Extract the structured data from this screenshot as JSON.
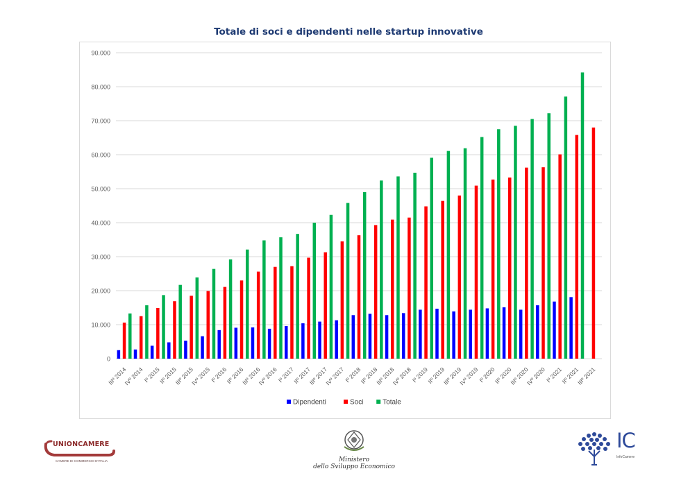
{
  "chart_data": {
    "type": "bar",
    "title": "Totale di soci e dipendenti nelle startup innovative",
    "categories": [
      "IIIº 2014",
      "IVº 2014",
      "Iº 2015",
      "IIº 2015",
      "IIIº 2015",
      "IVº 2015",
      "Iº 2016",
      "IIº 2016",
      "IIIº 2016",
      "IVº 2016",
      "Iº 2017",
      "IIº 2017",
      "IIIº 2017",
      "IVº 2017",
      "Iº 2018",
      "IIº 2018",
      "IIIº 2018",
      "IVº 2018",
      "Iº 2019",
      "IIº 2019",
      "IIIº 2019",
      "IVº 2019",
      "Iº 2020",
      "IIº 2020",
      "IIIº 2020",
      "IVº 2020",
      "Iº 2021",
      "IIº 2021",
      "IIIº 2021"
    ],
    "series": [
      {
        "name": "Dipendenti",
        "color": "#0000ff",
        "values": [
          2500,
          2700,
          3800,
          4800,
          5300,
          6600,
          8400,
          9100,
          9200,
          8800,
          9600,
          10400,
          10900,
          11300,
          12800,
          13200,
          12800,
          13400,
          14400,
          14700,
          13900,
          14400,
          14800,
          15100,
          14400,
          15700,
          16800,
          18100,
          null
        ]
      },
      {
        "name": "Soci",
        "color": "#ff0000",
        "values": [
          10600,
          12500,
          14900,
          16900,
          18500,
          19900,
          21100,
          23000,
          25600,
          27000,
          27200,
          29700,
          31300,
          34500,
          36300,
          39300,
          40900,
          41500,
          44800,
          46400,
          48000,
          50900,
          52700,
          53300,
          56200,
          56300,
          60100,
          65800,
          68000
        ]
      },
      {
        "name": "Totale",
        "color": "#00b050",
        "values": [
          13300,
          15700,
          18700,
          21700,
          23900,
          26400,
          29200,
          32100,
          34800,
          35700,
          36700,
          40000,
          42300,
          45800,
          49000,
          52400,
          53600,
          54700,
          59100,
          61100,
          61900,
          65200,
          67500,
          68500,
          70500,
          72200,
          77100,
          84200,
          null
        ]
      }
    ],
    "ylim": [
      0,
      90000
    ],
    "yticks": [
      "0",
      "10.000",
      "20.000",
      "30.000",
      "40.000",
      "50.000",
      "60.000",
      "70.000",
      "80.000",
      "90.000"
    ],
    "grid": true,
    "legend": "bottom"
  },
  "logos": {
    "unioncamere_name": "UNIONCAMERE",
    "unioncamere_sub": "CAMERE DI COMMERCIO D'ITALIA",
    "mise_line1": "Ministero",
    "mise_line2": "dello Sviluppo Economico",
    "ic_text": "IC",
    "ic_sub": "InfoCamere"
  }
}
